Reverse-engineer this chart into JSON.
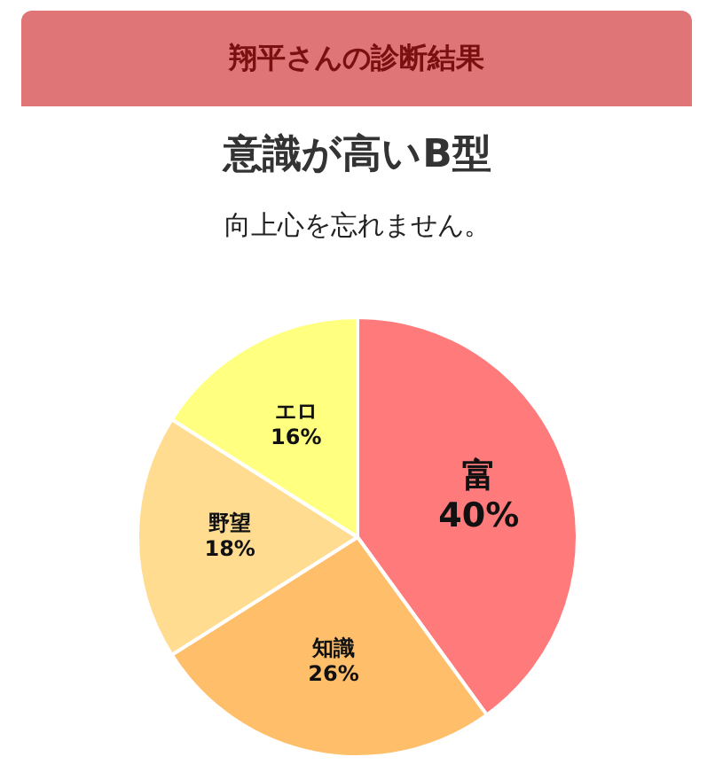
{
  "chart_data": {
    "type": "pie",
    "title": "翔平さんの診断結果",
    "subtitle": "意識が高いB型",
    "annotations": [
      "向上心を忘れません。"
    ],
    "categories": [
      "富",
      "知識",
      "野望",
      "エロ"
    ],
    "values": [
      40,
      26,
      18,
      16
    ],
    "value_labels": [
      "40%",
      "26%",
      "18%",
      "16%"
    ],
    "colors": [
      "#ff7a7a",
      "#ffbe6a",
      "#ffdc90",
      "#ffff80"
    ],
    "legend": false
  }
}
